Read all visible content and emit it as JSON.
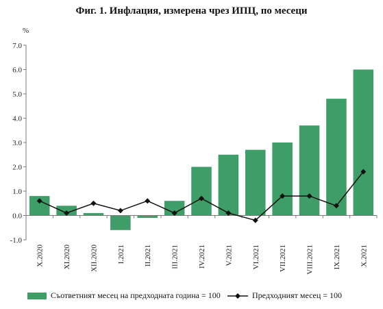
{
  "title": "Фиг. 1. Инфлация, измерена чрез ИПЦ, по месеци",
  "colors": {
    "bar": "#3f9e68",
    "line": "#111111",
    "axis": "#777777"
  },
  "chart_data": {
    "type": "bar",
    "title": "Фиг. 1. Инфлация, измерена чрез ИПЦ, по месеци",
    "ylabel": "%",
    "ylim": [
      -1.0,
      7.0
    ],
    "yticks": [
      "7.0",
      "6.0",
      "5.0",
      "4.0",
      "3.0",
      "2.0",
      "1.0",
      "0.0",
      "-1.0"
    ],
    "grid": false,
    "legend_position": "bottom",
    "categories": [
      "X.2020",
      "XI.2020",
      "XII.2020",
      "I.2021",
      "II.2021",
      "III.2021",
      "IV.2021",
      "V.2021",
      "VI.2021",
      "VII.2021",
      "VIII.2021",
      "IX.2021",
      "X.2021"
    ],
    "series": [
      {
        "name": "Съответният месец на предходната година = 100",
        "type": "bar",
        "values": [
          0.8,
          0.4,
          0.1,
          -0.6,
          -0.1,
          0.6,
          2.0,
          2.5,
          2.7,
          3.0,
          3.7,
          4.8,
          6.0
        ]
      },
      {
        "name": "Предходният месец = 100",
        "type": "line",
        "values": [
          0.6,
          0.1,
          0.5,
          0.2,
          0.6,
          0.1,
          0.7,
          0.1,
          -0.2,
          0.8,
          0.8,
          0.4,
          1.8
        ]
      }
    ]
  }
}
